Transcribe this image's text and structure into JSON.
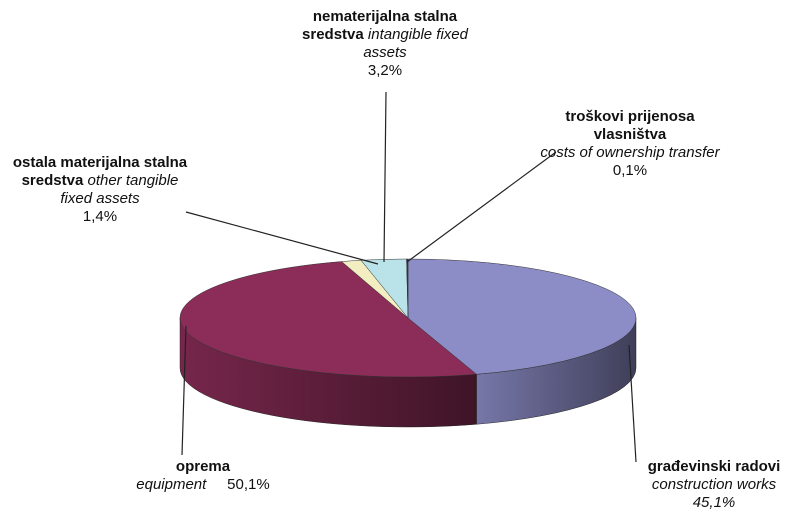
{
  "chart_data": {
    "type": "pie3d",
    "categories": [
      "građevinski radovi",
      "oprema",
      "ostala materijalna stalna sredstva",
      "nematerijalna stalna sredstva",
      "troškovi prijenosa vlasništva"
    ],
    "categories_en": [
      "construction works",
      "equipment",
      "other tangible fixed assets",
      "intangible fixed assets",
      "costs of ownership transfer"
    ],
    "values": [
      45.1,
      50.1,
      1.4,
      3.2,
      0.1
    ],
    "value_labels": [
      "45,1%",
      "50,1%",
      "1,4%",
      "3,2%",
      "0,1%"
    ],
    "colors": [
      "#8c8cc6",
      "#8b2d58",
      "#f2eec2",
      "#b9e3e8",
      "#2a2f6b"
    ]
  }
}
